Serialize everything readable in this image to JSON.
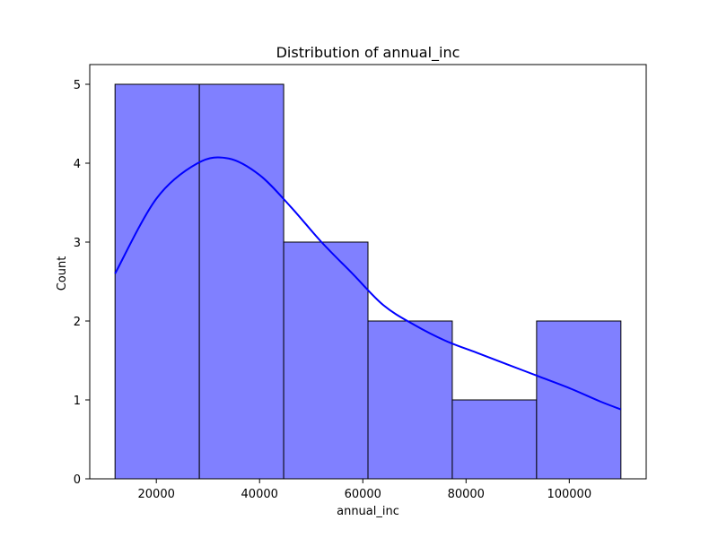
{
  "chart_data": {
    "type": "bar",
    "subtype": "histogram",
    "title": "Distribution of annual_inc",
    "xlabel": "annual_inc",
    "ylabel": "Count",
    "bins": [
      {
        "start": 12000,
        "end": 28333,
        "count": 5
      },
      {
        "start": 28333,
        "end": 44667,
        "count": 5
      },
      {
        "start": 44667,
        "end": 61000,
        "count": 3
      },
      {
        "start": 61000,
        "end": 77333,
        "count": 2
      },
      {
        "start": 77333,
        "end": 93667,
        "count": 1
      },
      {
        "start": 93667,
        "end": 110000,
        "count": 2
      }
    ],
    "kde": {
      "x": [
        12000,
        20000,
        28000,
        34000,
        40000,
        46000,
        52000,
        58000,
        64000,
        70000,
        76000,
        82000,
        88000,
        94000,
        100000,
        106000,
        110000
      ],
      "y": [
        2.6,
        3.55,
        4.0,
        4.06,
        3.85,
        3.45,
        3.0,
        2.6,
        2.2,
        1.95,
        1.75,
        1.6,
        1.45,
        1.3,
        1.15,
        0.98,
        0.88
      ]
    },
    "xlim": [
      7100,
      114900
    ],
    "ylim": [
      0,
      5.25
    ],
    "xticks": [
      "20000",
      "40000",
      "60000",
      "80000",
      "100000"
    ],
    "xtick_values": [
      20000,
      40000,
      60000,
      80000,
      100000
    ],
    "yticks": [
      "0",
      "1",
      "2",
      "3",
      "4",
      "5"
    ],
    "ytick_values": [
      0,
      1,
      2,
      3,
      4,
      5
    ],
    "grid": false,
    "bar_color": "#8080ff",
    "bar_edge_color": "#000000",
    "kde_color": "#0000ff"
  }
}
